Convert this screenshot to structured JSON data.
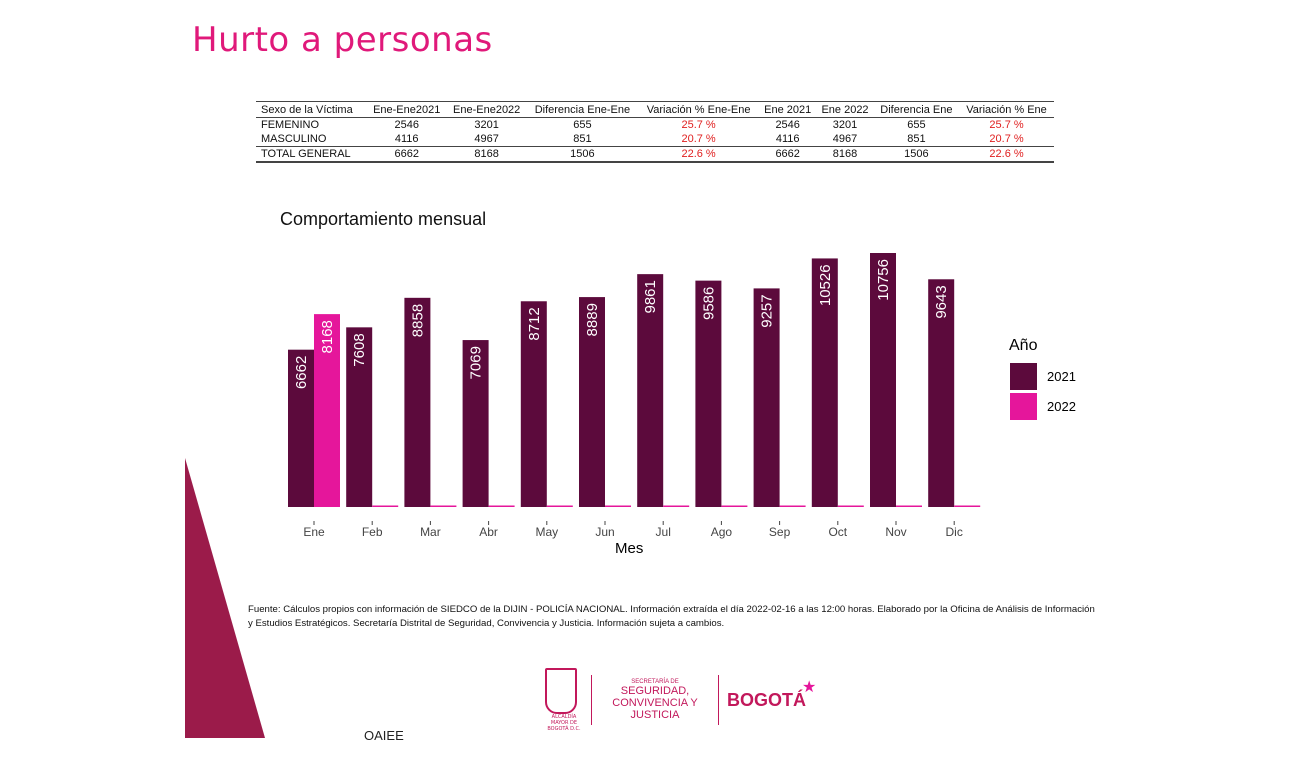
{
  "title": "Hurto a personas",
  "table": {
    "headers": [
      "Sexo de la Víctima",
      "Ene-Ene2021",
      "Ene-Ene2022",
      "Diferencia Ene-Ene",
      "Variación % Ene-Ene",
      "Ene 2021",
      "Ene 2022",
      "Diferencia Ene",
      "Variación % Ene"
    ],
    "rows": [
      [
        "FEMENINO",
        "2546",
        "3201",
        "655",
        "25.7 %",
        "2546",
        "3201",
        "655",
        "25.7 %"
      ],
      [
        "MASCULINO",
        "4116",
        "4967",
        "851",
        "20.7 %",
        "4116",
        "4967",
        "851",
        "20.7 %"
      ],
      [
        "TOTAL GENERAL",
        "6662",
        "8168",
        "1506",
        "22.6 %",
        "6662",
        "8168",
        "1506",
        "22.6 %"
      ]
    ]
  },
  "chart_data": {
    "type": "bar",
    "title": "Comportamiento mensual",
    "xlabel": "Mes",
    "ylabel": "",
    "categories": [
      "Ene",
      "Feb",
      "Mar",
      "Abr",
      "May",
      "Jun",
      "Jul",
      "Ago",
      "Sep",
      "Oct",
      "Nov",
      "Dic"
    ],
    "series": [
      {
        "name": "2021",
        "color": "#5c0a3c",
        "values": [
          6662,
          7608,
          8858,
          7069,
          8712,
          8889,
          9861,
          9586,
          9257,
          10526,
          10756,
          9643
        ]
      },
      {
        "name": "2022",
        "color": "#e5169b",
        "values": [
          8168,
          0,
          0,
          0,
          0,
          0,
          0,
          0,
          0,
          0,
          0,
          0
        ]
      }
    ],
    "legend_title": "Año",
    "legend_placement": "right",
    "ylim": [
      0,
      10756
    ],
    "grid": false,
    "data_labels": "vertical, inside bars"
  },
  "source_text": "Fuente: Cálculos propios con información de SIEDCO de la DIJIN - POLICÍA NACIONAL. Información extraída el día 2022-02-16 a las 12:00 horas. Elaborado por la Oficina de Análisis de Información y Estudios Estratégicos. Secretaría Distrital de Seguridad, Convivencia y Justicia. Información sujeta a cambios.",
  "logos": {
    "alcaldia": "ALCALDÍA MAYOR DE BOGOTÁ D.C.",
    "secretaria_small": "SECRETARÍA DE",
    "secretaria_main": "SEGURIDAD, CONVIVENCIA Y JUSTICIA",
    "bogota": "BOGOTÁ"
  },
  "footer_label": "OAIEE",
  "colors": {
    "title": "#e0197a",
    "accent_deco": "#9b1b4a",
    "variation_red": "#e02020"
  }
}
